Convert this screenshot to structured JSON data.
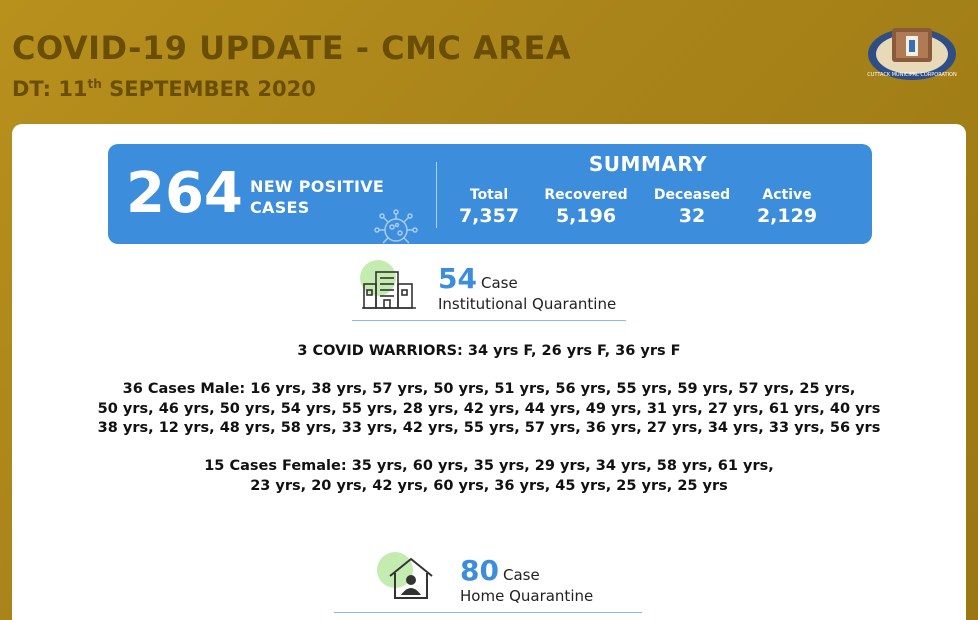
{
  "header": {
    "title": "COVID-19 UPDATE - CMC AREA",
    "date_prefix": "DT: 11",
    "date_sup": "th",
    "date_suffix": " SEPTEMBER 2020"
  },
  "logo": {
    "name": "cuttack-municipal-corporation-logo-icon",
    "text": "CUTTACK MUNICIPAL CORPORATION"
  },
  "banner": {
    "new_cases": "264",
    "new_cases_label_1": "NEW POSITIVE",
    "new_cases_label_2": "CASES",
    "summary_title": "SUMMARY",
    "stats": [
      {
        "label": "Total",
        "value": "7,357"
      },
      {
        "label": "Recovered",
        "value": "5,196"
      },
      {
        "label": "Deceased",
        "value": "32"
      },
      {
        "label": "Active",
        "value": "2,129"
      }
    ]
  },
  "institutional": {
    "count": "54",
    "case_word": "Case",
    "label": "Institutional Quarantine",
    "icon": "building-icon"
  },
  "details": {
    "warriors": "3 COVID WARRIORS: 34 yrs F, 26 yrs F, 36 yrs F",
    "male_line1": "36 Cases Male: 16 yrs, 38 yrs, 57 yrs, 50 yrs, 51 yrs, 56 yrs, 55 yrs, 59 yrs, 57 yrs, 25 yrs,",
    "male_line2": "50 yrs, 46 yrs, 50 yrs, 54 yrs, 55 yrs, 28 yrs, 42 yrs, 44 yrs, 49 yrs, 31 yrs, 27 yrs, 61 yrs, 40 yrs",
    "male_line3": "38 yrs, 12 yrs, 48 yrs, 58 yrs, 33 yrs, 42 yrs, 55 yrs, 57 yrs, 36 yrs, 27 yrs, 34 yrs, 33 yrs, 56 yrs",
    "female_line1": "15 Cases Female: 35 yrs, 60 yrs, 35 yrs, 29 yrs, 34 yrs, 58 yrs, 61 yrs,",
    "female_line2": "23 yrs, 20 yrs, 42 yrs, 60 yrs, 36 yrs, 45 yrs, 25 yrs, 25 yrs"
  },
  "home": {
    "count": "80",
    "case_word": "Case",
    "label": "Home Quarantine",
    "icon": "house-person-icon"
  },
  "colors": {
    "gold": "#b8901c",
    "title_brown": "#6a4e06",
    "blue": "#3d8ddd",
    "green_circle": "#c4ecb0"
  }
}
